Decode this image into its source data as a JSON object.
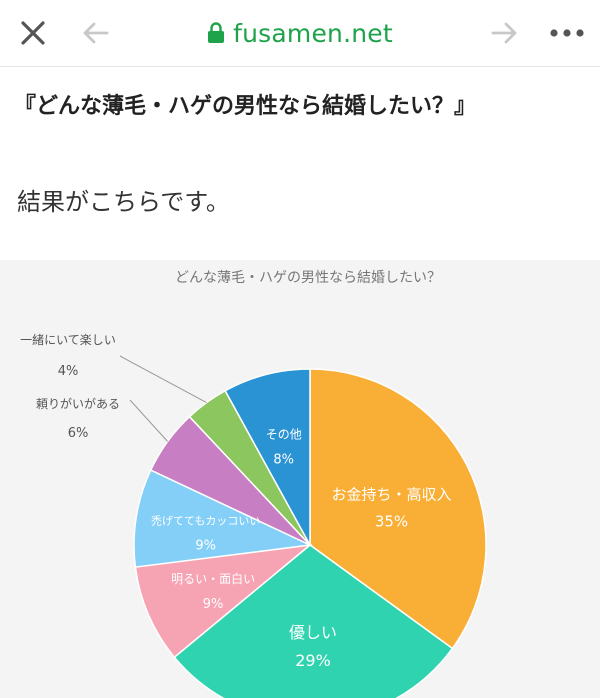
{
  "browser": {
    "url": "fusamen.net",
    "icons": {
      "close": "close-icon",
      "back": "arrow-left-icon",
      "forward": "arrow-right-icon",
      "more": "more-horizontal-icon",
      "lock": "lock-icon"
    },
    "colors": {
      "url": "#1ea34a",
      "lock": "#1ea34a",
      "inactive": "#c8c8c8",
      "active": "#555555"
    }
  },
  "article": {
    "headline": "『どんな薄毛・ハゲの男性なら結婚したい？』",
    "lead": "結果がこちらです。"
  },
  "chart_data": {
    "type": "pie",
    "title": "どんな薄毛・ハゲの男性なら結婚したい？",
    "series": [
      {
        "name": "お金持ち・高収入",
        "value": 35,
        "label": "35%",
        "color": "#f9ae35"
      },
      {
        "name": "優しい",
        "value": 29,
        "label": "29%",
        "color": "#2fd3af"
      },
      {
        "name": "明るい・面白い",
        "value": 9,
        "label": "9%",
        "color": "#f6a3b3"
      },
      {
        "name": "禿げててもカッコいい",
        "value": 9,
        "label": "9%",
        "color": "#84cff8"
      },
      {
        "name": "頼りがいがある",
        "value": 6,
        "label": "6%",
        "color": "#c87ec2"
      },
      {
        "name": "一緒にいて楽しい",
        "value": 4,
        "label": "4%",
        "color": "#8cc65f"
      },
      {
        "name": "その他",
        "value": 8,
        "label": "8%",
        "color": "#2a93d3"
      }
    ]
  }
}
